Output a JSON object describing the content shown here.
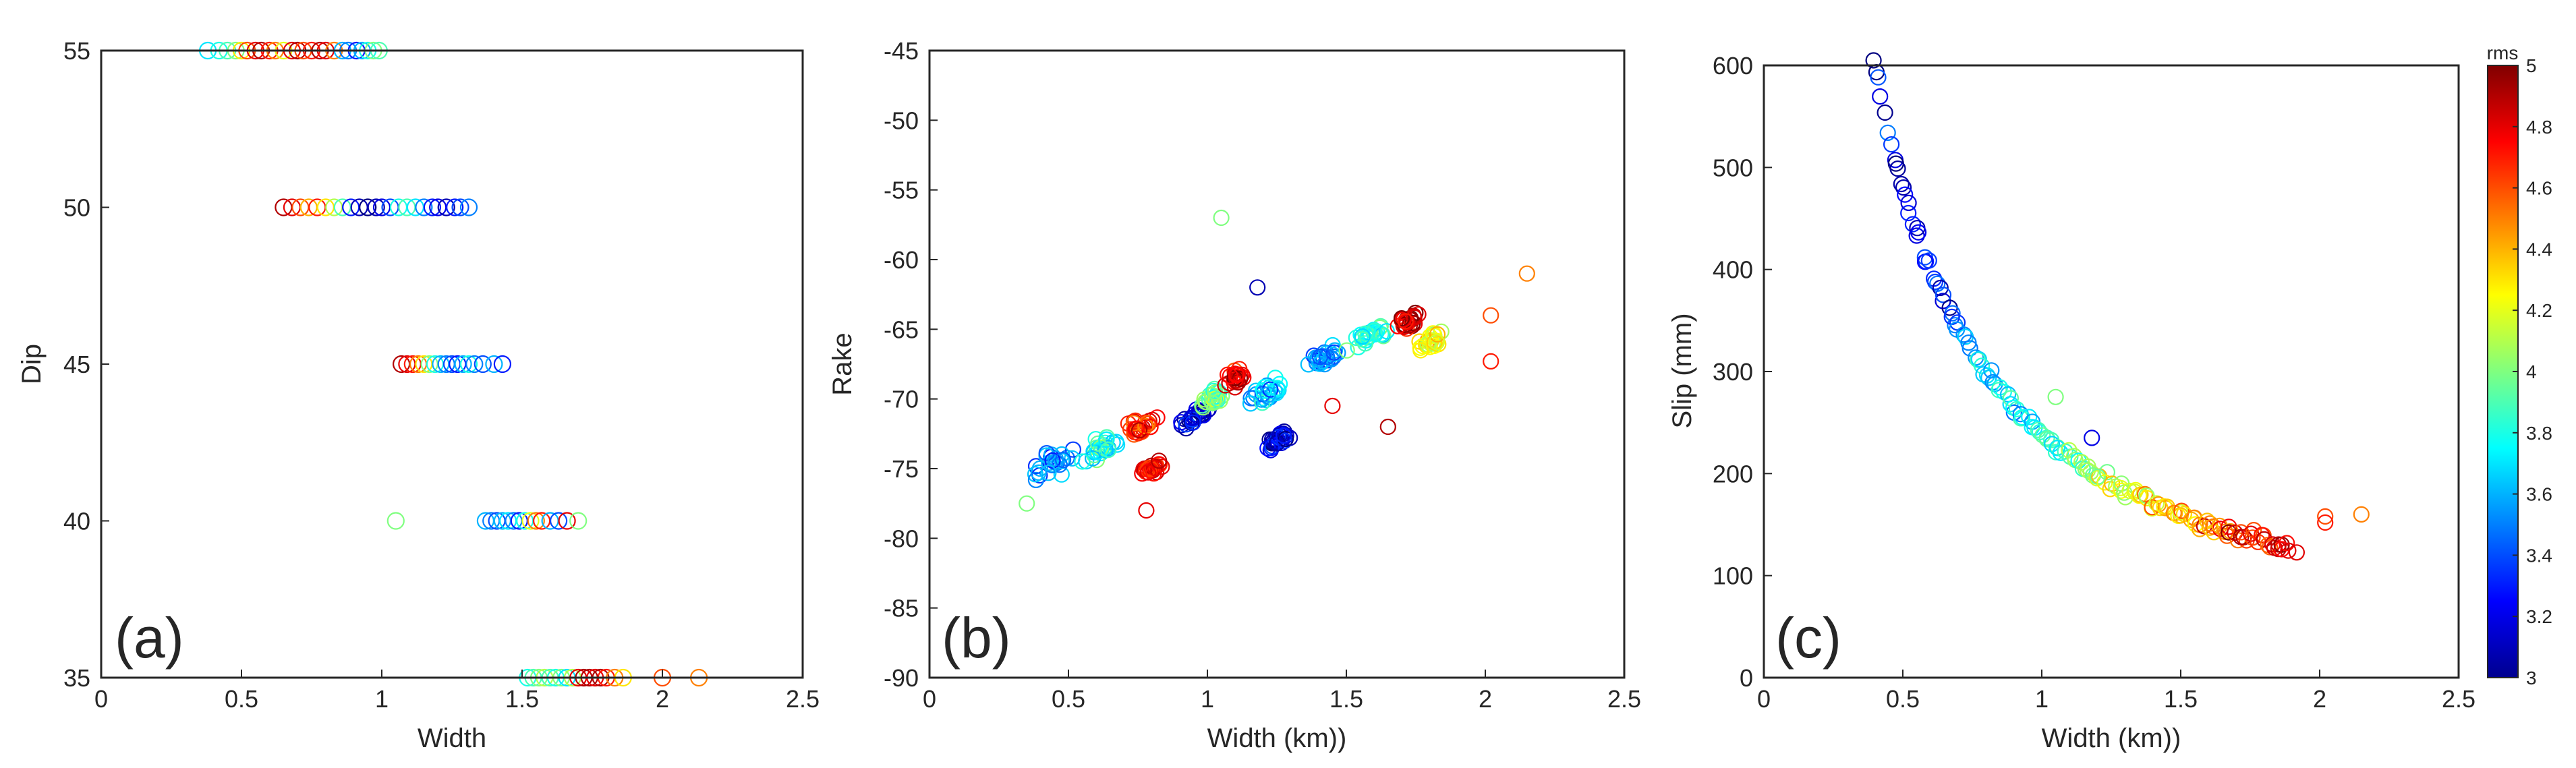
{
  "figure": {
    "description_colors": {
      "axis": "#262626",
      "background": "#ffffff"
    }
  },
  "chart_data": [
    {
      "type": "scatter",
      "panel_label": "(a)",
      "title": "",
      "xlabel": "Width",
      "ylabel": "Dip",
      "xlim": [
        0,
        2.5
      ],
      "ylim": [
        35,
        55
      ],
      "xticks": [
        "0",
        "0.5",
        "1",
        "1.5",
        "2",
        "2.5"
      ],
      "yticks": [
        "35",
        "40",
        "45",
        "50",
        "55"
      ],
      "series": [
        {
          "name": "Dip 55",
          "y": 55,
          "x": [
            0.38,
            0.42,
            0.45,
            0.48,
            0.5,
            0.52,
            0.55,
            0.57,
            0.6,
            0.62,
            0.65,
            0.68,
            0.7,
            0.72,
            0.75,
            0.78,
            0.8,
            0.83,
            0.86,
            0.88,
            0.91,
            0.93,
            0.95,
            0.97,
            0.99
          ],
          "rms": [
            3.7,
            3.8,
            3.9,
            4.0,
            4.3,
            4.6,
            4.8,
            4.9,
            4.7,
            4.5,
            4.2,
            4.8,
            4.9,
            4.6,
            4.7,
            4.9,
            4.8,
            4.5,
            3.6,
            3.5,
            3.3,
            3.6,
            3.8,
            4.0,
            3.9
          ]
        },
        {
          "name": "Dip 50",
          "y": 50,
          "x": [
            0.65,
            0.68,
            0.71,
            0.74,
            0.77,
            0.8,
            0.83,
            0.86,
            0.89,
            0.92,
            0.95,
            0.98,
            1.0,
            1.03,
            1.06,
            1.09,
            1.12,
            1.15,
            1.18,
            1.2,
            1.23,
            1.26,
            1.28,
            1.31
          ],
          "rms": [
            4.9,
            4.8,
            4.6,
            4.4,
            4.7,
            4.3,
            4.1,
            3.9,
            3.3,
            3.1,
            3.0,
            3.1,
            3.2,
            3.4,
            3.8,
            3.9,
            3.7,
            3.5,
            3.3,
            3.2,
            3.1,
            3.3,
            3.4,
            3.5
          ]
        },
        {
          "name": "Dip 45",
          "y": 45,
          "x": [
            1.07,
            1.09,
            1.11,
            1.13,
            1.15,
            1.17,
            1.19,
            1.21,
            1.23,
            1.25,
            1.27,
            1.29,
            1.31,
            1.33,
            1.36,
            1.4,
            1.43
          ],
          "rms": [
            4.9,
            4.8,
            4.7,
            4.5,
            4.3,
            4.0,
            3.8,
            3.6,
            3.5,
            3.4,
            3.3,
            3.6,
            3.8,
            3.5,
            3.4,
            3.6,
            3.3
          ]
        },
        {
          "name": "Dip 40",
          "y": 40,
          "x": [
            1.05,
            1.37,
            1.39,
            1.41,
            1.43,
            1.45,
            1.47,
            1.49,
            1.51,
            1.53,
            1.55,
            1.57,
            1.6,
            1.63,
            1.66,
            1.7
          ],
          "rms": [
            4.0,
            3.6,
            3.5,
            3.4,
            3.6,
            3.7,
            3.5,
            3.3,
            3.8,
            4.2,
            4.5,
            4.7,
            3.6,
            3.4,
            4.8,
            4.0
          ]
        },
        {
          "name": "Dip 35",
          "y": 35,
          "x": [
            1.52,
            1.54,
            1.56,
            1.58,
            1.6,
            1.62,
            1.64,
            1.66,
            1.68,
            1.7,
            1.72,
            1.74,
            1.76,
            1.78,
            1.8,
            1.83,
            1.86,
            2.0,
            2.13
          ],
          "rms": [
            3.8,
            3.9,
            4.0,
            4.1,
            3.9,
            3.8,
            4.0,
            3.7,
            4.1,
            4.8,
            4.9,
            4.9,
            4.8,
            4.9,
            4.7,
            4.5,
            4.3,
            4.6,
            4.5
          ]
        }
      ]
    },
    {
      "type": "scatter",
      "panel_label": "(b)",
      "title": "",
      "xlabel": "Width (km))",
      "ylabel": "Rake",
      "xlim": [
        0,
        2.5
      ],
      "ylim": [
        -90,
        -45
      ],
      "xticks": [
        "0",
        "0.5",
        "1",
        "1.5",
        "2",
        "2.5"
      ],
      "yticks": [
        "-90",
        "-85",
        "-80",
        "-75",
        "-70",
        "-65",
        "-60",
        "-55",
        "-50",
        "-45"
      ],
      "clusters": [
        {
          "cx": 0.45,
          "cy": -74.5,
          "sx": 0.1,
          "sy": 1.2,
          "rms": 3.5
        },
        {
          "cx": 0.62,
          "cy": -73.5,
          "sx": 0.1,
          "sy": 1.0,
          "rms": 3.8
        },
        {
          "cx": 0.75,
          "cy": -72.0,
          "sx": 0.08,
          "sy": 0.8,
          "rms": 4.7
        },
        {
          "cx": 0.8,
          "cy": -75.0,
          "sx": 0.06,
          "sy": 0.6,
          "rms": 4.8
        },
        {
          "cx": 0.95,
          "cy": -71.5,
          "sx": 0.08,
          "sy": 0.8,
          "rms": 3.2
        },
        {
          "cx": 1.02,
          "cy": -70.0,
          "sx": 0.06,
          "sy": 0.8,
          "rms": 4.0
        },
        {
          "cx": 1.1,
          "cy": -68.5,
          "sx": 0.05,
          "sy": 0.8,
          "rms": 4.8
        },
        {
          "cx": 1.22,
          "cy": -69.5,
          "sx": 0.08,
          "sy": 1.0,
          "rms": 3.6
        },
        {
          "cx": 1.25,
          "cy": -73.0,
          "sx": 0.06,
          "sy": 0.8,
          "rms": 3.2
        },
        {
          "cx": 1.42,
          "cy": -67.0,
          "sx": 0.08,
          "sy": 0.8,
          "rms": 3.5
        },
        {
          "cx": 1.58,
          "cy": -65.5,
          "sx": 0.1,
          "sy": 0.8,
          "rms": 3.8
        },
        {
          "cx": 1.72,
          "cy": -64.5,
          "sx": 0.06,
          "sy": 0.7,
          "rms": 4.9
        },
        {
          "cx": 1.8,
          "cy": -66.0,
          "sx": 0.06,
          "sy": 0.8,
          "rms": 4.2
        }
      ],
      "outliers": [
        {
          "x": 1.05,
          "y": -57,
          "rms": 4.0
        },
        {
          "x": 1.18,
          "y": -62,
          "rms": 3.1
        },
        {
          "x": 2.15,
          "y": -61,
          "rms": 4.5
        },
        {
          "x": 2.02,
          "y": -64,
          "rms": 4.6
        },
        {
          "x": 2.02,
          "y": -67.3,
          "rms": 4.7
        },
        {
          "x": 0.35,
          "y": -77.5,
          "rms": 4.0
        },
        {
          "x": 0.78,
          "y": -78,
          "rms": 4.8
        },
        {
          "x": 1.45,
          "y": -70.5,
          "rms": 4.8
        },
        {
          "x": 1.65,
          "y": -72,
          "rms": 4.9
        }
      ]
    },
    {
      "type": "scatter",
      "panel_label": "(c)",
      "title": "",
      "xlabel": "Width (km))",
      "ylabel": "Slip (mm)",
      "xlim": [
        0,
        2.5
      ],
      "ylim": [
        0,
        600
      ],
      "xticks": [
        "0",
        "0.5",
        "1",
        "1.5",
        "2",
        "2.5"
      ],
      "yticks": [
        "0",
        "100",
        "200",
        "300",
        "400",
        "500",
        "600"
      ],
      "curve": {
        "relation": "slip = k / width",
        "k": 240,
        "x_range": [
          0.4,
          1.9
        ]
      },
      "outliers": [
        {
          "x": 1.05,
          "y": 275,
          "rms": 4.0
        },
        {
          "x": 1.18,
          "y": 235,
          "rms": 3.2
        },
        {
          "x": 2.02,
          "y": 158,
          "rms": 4.6
        },
        {
          "x": 2.02,
          "y": 152,
          "rms": 4.7
        },
        {
          "x": 2.15,
          "y": 160,
          "rms": 4.5
        }
      ],
      "colorbar": {
        "label": "rms",
        "min": 3,
        "max": 5,
        "ticks": [
          "3",
          "3.2",
          "3.4",
          "3.6",
          "3.8",
          "4",
          "4.2",
          "4.4",
          "4.6",
          "4.8",
          "5"
        ],
        "colormap": "jet"
      }
    }
  ]
}
